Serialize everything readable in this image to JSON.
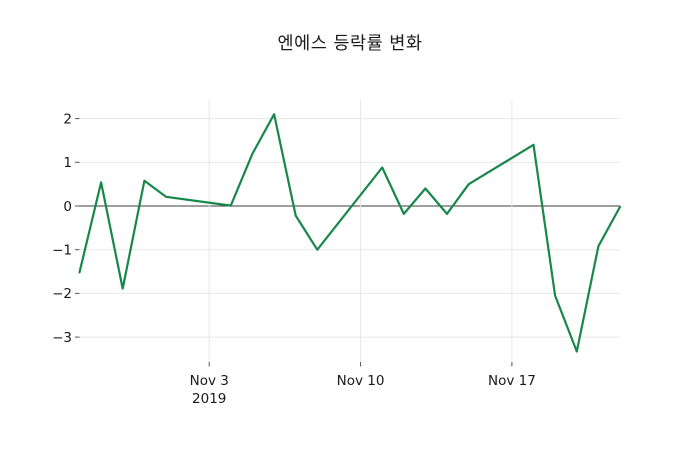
{
  "title": "엔에스 등락률 변화",
  "colors": {
    "line": "#17874a",
    "grid": "#e7e7e7",
    "zero_line": "#3d3d3d",
    "tick_mark": "#555555",
    "text": "#1a1a1a",
    "background": "#ffffff"
  },
  "chart_data": {
    "type": "line",
    "title": "엔에스 등락률 변화",
    "xlabel": "",
    "ylabel": "",
    "legend": "none",
    "grid": true,
    "zero_line": true,
    "ylim": [
      -3.57,
      2.43
    ],
    "x": [
      "2019-10-28",
      "2019-10-29",
      "2019-10-30",
      "2019-10-31",
      "2019-11-01",
      "2019-11-04",
      "2019-11-05",
      "2019-11-06",
      "2019-11-07",
      "2019-11-08",
      "2019-11-11",
      "2019-11-12",
      "2019-11-13",
      "2019-11-14",
      "2019-11-15",
      "2019-11-18",
      "2019-11-19",
      "2019-11-20",
      "2019-11-21",
      "2019-11-22"
    ],
    "values": [
      -1.52,
      0.54,
      -1.89,
      0.58,
      0.21,
      0.01,
      1.2,
      2.1,
      -0.22,
      -1.0,
      0.88,
      -0.18,
      0.4,
      -0.18,
      0.5,
      1.4,
      -2.05,
      -3.33,
      -0.92,
      -0.02
    ],
    "yticks": {
      "values": [
        2,
        1,
        0,
        -1,
        -2,
        -3
      ],
      "labels": [
        "2",
        "1",
        "0",
        "−1",
        "−2",
        "−3"
      ]
    },
    "xticks": {
      "dates": [
        "2019-11-03",
        "2019-11-10",
        "2019-11-17"
      ],
      "labels": [
        "Nov 3",
        "Nov 10",
        "Nov 17"
      ],
      "year_label": "2019",
      "year_under_index": 0
    }
  }
}
